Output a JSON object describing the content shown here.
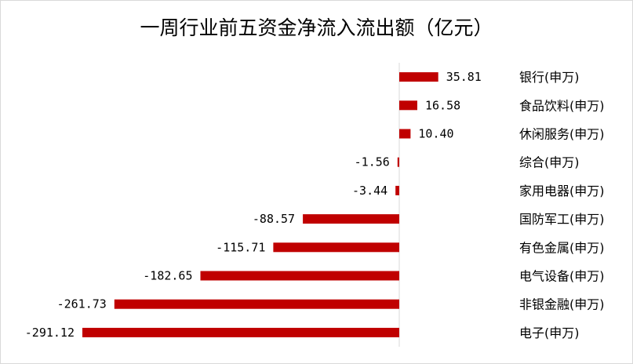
{
  "chart_data": {
    "type": "bar",
    "orientation": "horizontal",
    "title": "一周行业前五资金净流入流出额（亿元）",
    "categories": [
      "银行(申万)",
      "食品饮料(申万)",
      "休闲服务(申万)",
      "综合(申万)",
      "家用电器(申万)",
      "国防军工(申万)",
      "有色金属(申万)",
      "电气设备(申万)",
      "非银金融(申万)",
      "电子(申万)"
    ],
    "values": [
      35.81,
      16.58,
      10.4,
      -1.56,
      -3.44,
      -88.57,
      -115.71,
      -182.65,
      -261.73,
      -291.12
    ],
    "value_labels": [
      "35.81",
      "16.58",
      "10.40",
      "-1.56",
      "-3.44",
      "-88.57",
      "-115.71",
      "-182.65",
      "-261.73",
      "-291.12"
    ],
    "bar_color": "#c00000",
    "grid": false,
    "legend": "none"
  }
}
